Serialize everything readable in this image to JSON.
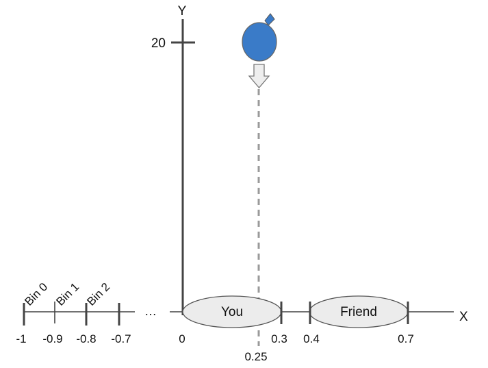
{
  "diagram": {
    "y_axis_label": "Y",
    "x_axis_label": "X",
    "y_tick_label": "20",
    "ellipsis": "…",
    "neg_ticks": [
      "-1",
      "-0.9",
      "-0.8",
      "-0.7"
    ],
    "bins": [
      "Bin 0",
      "Bin 1",
      "Bin 2"
    ],
    "pos_ticks": [
      "0",
      "0.3",
      "0.4",
      "0.7"
    ],
    "drop_value": "0.25",
    "regions": [
      {
        "label": "You",
        "from": 0,
        "to": 0.3
      },
      {
        "label": "Friend",
        "from": 0.4,
        "to": 0.7
      }
    ],
    "balloon": {
      "x": 0.25,
      "y": 20
    },
    "colors": {
      "balloon": "#3a7bc8",
      "region_fill": "#ececec",
      "axis": "#444444",
      "drop_line": "#9a9a9a"
    }
  }
}
